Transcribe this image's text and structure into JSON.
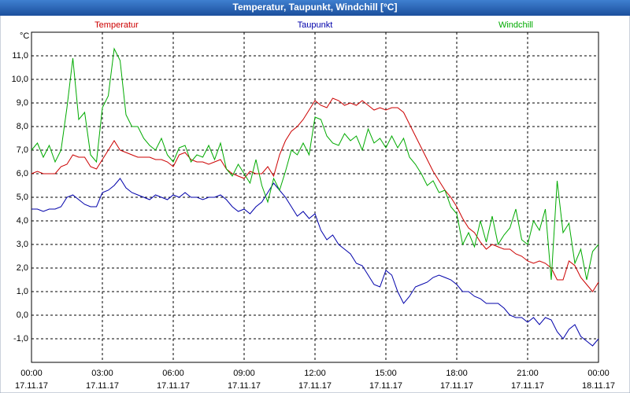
{
  "chart_data": {
    "type": "line",
    "title": "Temperatur, Taupunkt, Windchill [°C]",
    "ylabel": "°C",
    "grid": true,
    "legend": "top",
    "xlim": [
      0,
      24
    ],
    "ylim": [
      -2,
      12
    ],
    "yticks": [
      {
        "value": -1,
        "label": "-1,0"
      },
      {
        "value": 0,
        "label": "0,0"
      },
      {
        "value": 1,
        "label": "1,0"
      },
      {
        "value": 2,
        "label": "2,0"
      },
      {
        "value": 3,
        "label": "3,0"
      },
      {
        "value": 4,
        "label": "4,0"
      },
      {
        "value": 5,
        "label": "5,0"
      },
      {
        "value": 6,
        "label": "6,0"
      },
      {
        "value": 7,
        "label": "7,0"
      },
      {
        "value": 8,
        "label": "8,0"
      },
      {
        "value": 9,
        "label": "9,0"
      },
      {
        "value": 10,
        "label": "10,0"
      },
      {
        "value": 11,
        "label": "11,0"
      }
    ],
    "xticks": [
      {
        "value": 0,
        "label": "00:00",
        "date": "17.11.17"
      },
      {
        "value": 3,
        "label": "03:00",
        "date": "17.11.17"
      },
      {
        "value": 6,
        "label": "06:00",
        "date": "17.11.17"
      },
      {
        "value": 9,
        "label": "09:00",
        "date": "17.11.17"
      },
      {
        "value": 12,
        "label": "12:00",
        "date": "17.11.17"
      },
      {
        "value": 15,
        "label": "15:00",
        "date": "17.11.17"
      },
      {
        "value": 18,
        "label": "18:00",
        "date": "17.11.17"
      },
      {
        "value": 21,
        "label": "21:00",
        "date": "17.11.17"
      },
      {
        "value": 24,
        "label": "00:00",
        "date": "18.11.17"
      }
    ],
    "x": [
      0,
      0.25,
      0.5,
      0.75,
      1,
      1.25,
      1.5,
      1.75,
      2,
      2.25,
      2.5,
      2.75,
      3,
      3.25,
      3.5,
      3.75,
      4,
      4.25,
      4.5,
      4.75,
      5,
      5.25,
      5.5,
      5.75,
      6,
      6.25,
      6.5,
      6.75,
      7,
      7.25,
      7.5,
      7.75,
      8,
      8.25,
      8.5,
      8.75,
      9,
      9.25,
      9.5,
      9.75,
      10,
      10.25,
      10.5,
      10.75,
      11,
      11.25,
      11.5,
      11.75,
      12,
      12.25,
      12.5,
      12.75,
      13,
      13.25,
      13.5,
      13.75,
      14,
      14.25,
      14.5,
      14.75,
      15,
      15.25,
      15.5,
      15.75,
      16,
      16.25,
      16.5,
      16.75,
      17,
      17.25,
      17.5,
      17.75,
      18,
      18.25,
      18.5,
      18.75,
      19,
      19.25,
      19.5,
      19.75,
      20,
      20.25,
      20.5,
      20.75,
      21,
      21.25,
      21.5,
      21.75,
      22,
      22.25,
      22.5,
      22.75,
      23,
      23.25,
      23.5,
      23.75,
      24
    ],
    "series": [
      {
        "name": "Temperatur",
        "color": "#cc0000",
        "values": [
          6.0,
          6.1,
          6.0,
          6.0,
          6.0,
          6.3,
          6.4,
          6.8,
          6.7,
          6.7,
          6.3,
          6.2,
          6.6,
          7.0,
          7.4,
          7.0,
          6.9,
          6.8,
          6.7,
          6.7,
          6.7,
          6.6,
          6.6,
          6.5,
          6.3,
          6.8,
          6.9,
          6.6,
          6.5,
          6.5,
          6.4,
          6.5,
          6.6,
          6.2,
          6.0,
          5.9,
          5.8,
          6.1,
          6.0,
          6.0,
          6.3,
          5.9,
          6.8,
          7.4,
          7.8,
          8.0,
          8.3,
          8.7,
          9.1,
          8.9,
          8.8,
          9.2,
          9.1,
          8.9,
          9.0,
          8.9,
          9.1,
          8.9,
          8.7,
          8.8,
          8.7,
          8.8,
          8.8,
          8.6,
          8.1,
          7.6,
          7.1,
          6.6,
          6.1,
          5.7,
          5.3,
          5.0,
          4.6,
          4.1,
          3.7,
          3.5,
          3.1,
          2.8,
          3.0,
          2.9,
          2.8,
          2.8,
          2.6,
          2.5,
          2.3,
          2.2,
          2.3,
          2.2,
          2.0,
          1.5,
          1.5,
          2.3,
          2.1,
          1.6,
          1.3,
          1.0,
          1.4
        ]
      },
      {
        "name": "Taupunkt",
        "color": "#0000aa",
        "values": [
          4.5,
          4.5,
          4.4,
          4.5,
          4.5,
          4.6,
          5.0,
          5.1,
          4.9,
          4.7,
          4.6,
          4.6,
          5.2,
          5.3,
          5.5,
          5.8,
          5.4,
          5.2,
          5.1,
          5.0,
          4.9,
          5.1,
          5.0,
          4.9,
          5.1,
          5.0,
          5.2,
          5.0,
          5.0,
          4.9,
          5.0,
          5.0,
          5.1,
          4.9,
          4.6,
          4.4,
          4.5,
          4.3,
          4.6,
          4.8,
          5.2,
          5.6,
          5.3,
          5.0,
          4.6,
          4.2,
          4.4,
          4.1,
          4.3,
          3.6,
          3.2,
          3.4,
          3.0,
          2.8,
          2.6,
          2.2,
          2.1,
          1.7,
          1.3,
          1.2,
          1.9,
          1.7,
          1.0,
          0.5,
          0.8,
          1.2,
          1.3,
          1.4,
          1.6,
          1.7,
          1.6,
          1.5,
          1.3,
          1.0,
          1.0,
          0.8,
          0.7,
          0.5,
          0.5,
          0.5,
          0.3,
          0.0,
          -0.1,
          -0.1,
          -0.3,
          -0.1,
          -0.4,
          -0.1,
          -0.2,
          -0.7,
          -1.0,
          -0.6,
          -0.4,
          -0.9,
          -1.1,
          -1.3,
          -1.0
        ]
      },
      {
        "name": "Windchill",
        "color": "#00aa00",
        "values": [
          7.0,
          7.3,
          6.7,
          7.2,
          6.5,
          7.0,
          8.8,
          10.9,
          8.3,
          8.6,
          6.8,
          6.5,
          8.8,
          9.3,
          11.3,
          10.8,
          8.5,
          8.0,
          8.0,
          7.5,
          7.2,
          7.0,
          7.5,
          6.8,
          6.5,
          7.1,
          7.2,
          6.5,
          6.8,
          6.7,
          7.2,
          6.6,
          7.3,
          6.2,
          5.9,
          6.4,
          6.0,
          5.6,
          6.6,
          5.5,
          4.8,
          5.8,
          5.3,
          6.1,
          7.0,
          6.8,
          7.3,
          6.8,
          8.4,
          8.3,
          7.6,
          7.3,
          7.2,
          7.7,
          7.4,
          7.6,
          7.0,
          7.9,
          7.3,
          7.5,
          7.1,
          7.6,
          7.1,
          7.5,
          6.7,
          6.4,
          6.0,
          5.5,
          5.7,
          5.2,
          5.3,
          4.6,
          4.3,
          3.0,
          3.5,
          2.9,
          4.0,
          3.1,
          4.2,
          3.0,
          3.4,
          3.7,
          4.5,
          3.2,
          3.0,
          4.0,
          3.6,
          4.5,
          1.5,
          5.7,
          3.5,
          3.9,
          2.2,
          2.8,
          1.5,
          2.7,
          3.0
        ]
      }
    ]
  }
}
